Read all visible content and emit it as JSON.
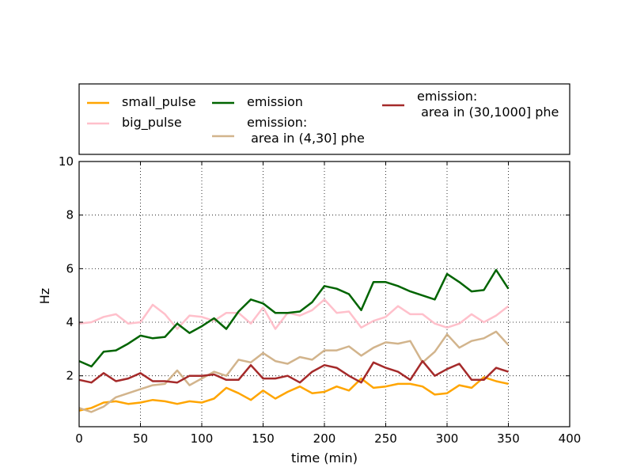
{
  "chart_data": {
    "type": "line",
    "xlabel": "time (min)",
    "ylabel": "Hz",
    "xlim": [
      0,
      400
    ],
    "ylim": [
      0.1,
      10
    ],
    "x_ticks": [
      0,
      50,
      100,
      150,
      200,
      250,
      300,
      350,
      400
    ],
    "y_ticks": [
      2,
      4,
      6,
      8,
      10
    ],
    "grid": true,
    "legend_position": "top",
    "x": [
      0,
      10,
      20,
      30,
      40,
      50,
      60,
      70,
      80,
      90,
      100,
      110,
      120,
      130,
      140,
      150,
      160,
      170,
      180,
      190,
      200,
      210,
      220,
      230,
      240,
      250,
      260,
      270,
      280,
      290,
      300,
      310,
      320,
      330,
      340,
      350
    ],
    "series": [
      {
        "name": "small_pulse",
        "color": "#FFA500",
        "values": [
          0.7,
          0.8,
          1.0,
          1.05,
          0.95,
          1.0,
          1.1,
          1.05,
          0.95,
          1.05,
          1.0,
          1.15,
          1.55,
          1.35,
          1.1,
          1.45,
          1.15,
          1.4,
          1.6,
          1.35,
          1.4,
          1.6,
          1.45,
          1.9,
          1.55,
          1.6,
          1.7,
          1.7,
          1.6,
          1.3,
          1.35,
          1.65,
          1.55,
          1.95,
          1.8,
          1.7
        ]
      },
      {
        "name": "big_pulse",
        "color": "#FFC0CB",
        "values": [
          3.95,
          4.0,
          4.2,
          4.3,
          3.95,
          4.0,
          4.65,
          4.3,
          3.75,
          4.25,
          4.2,
          4.05,
          4.35,
          4.35,
          3.95,
          4.55,
          3.75,
          4.35,
          4.25,
          4.45,
          4.85,
          4.35,
          4.4,
          3.8,
          4.05,
          4.2,
          4.6,
          4.3,
          4.3,
          3.95,
          3.8,
          3.95,
          4.3,
          4.0,
          4.25,
          4.6
        ]
      },
      {
        "name": "emission",
        "color": "#006400",
        "values": [
          2.55,
          2.35,
          2.9,
          2.95,
          3.2,
          3.5,
          3.4,
          3.45,
          3.95,
          3.6,
          3.85,
          4.15,
          3.75,
          4.4,
          4.85,
          4.7,
          4.35,
          4.35,
          4.4,
          4.75,
          5.35,
          5.25,
          5.05,
          4.45,
          5.5,
          5.5,
          5.35,
          5.15,
          5.0,
          4.85,
          5.8,
          5.5,
          5.15,
          5.2,
          5.95,
          5.25
        ]
      },
      {
        "name": "emission:\n area in (4,30] phe",
        "color": "#D2B48C",
        "values": [
          0.8,
          0.65,
          0.85,
          1.2,
          1.35,
          1.5,
          1.65,
          1.7,
          2.2,
          1.65,
          1.9,
          2.15,
          2.0,
          2.6,
          2.5,
          2.85,
          2.55,
          2.45,
          2.7,
          2.6,
          2.95,
          2.95,
          3.1,
          2.75,
          3.05,
          3.25,
          3.2,
          3.3,
          2.5,
          2.9,
          3.55,
          3.05,
          3.3,
          3.4,
          3.65,
          3.15
        ]
      },
      {
        "name": "emission:\n area in (30,1000] phe",
        "color": "#A52A2A",
        "values": [
          1.85,
          1.75,
          2.1,
          1.8,
          1.9,
          2.1,
          1.8,
          1.8,
          1.75,
          2.0,
          2.0,
          2.05,
          1.85,
          1.85,
          2.4,
          1.9,
          1.9,
          2.0,
          1.75,
          2.15,
          2.4,
          2.3,
          2.0,
          1.75,
          2.5,
          2.3,
          2.15,
          1.85,
          2.55,
          2.0,
          2.25,
          2.45,
          1.85,
          1.85,
          2.3,
          2.15
        ]
      }
    ]
  }
}
